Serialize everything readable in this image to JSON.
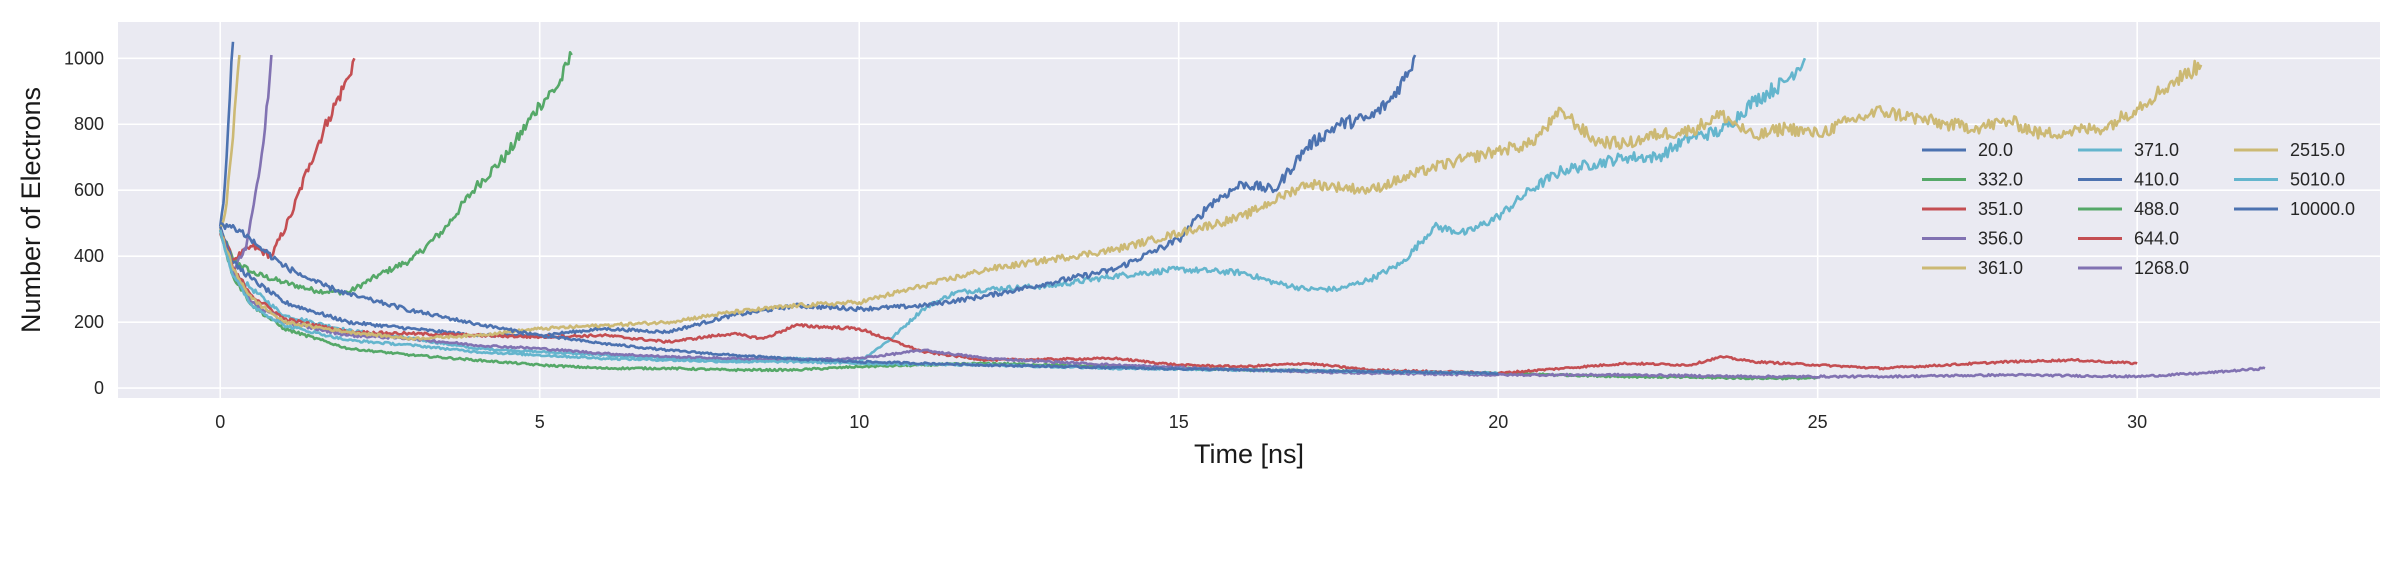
{
  "chart_data": {
    "type": "line",
    "xlabel": "Time [ns]",
    "ylabel": "Number of Electrons",
    "xlim": [
      -1.6,
      33.8
    ],
    "ylim": [
      -30,
      1110
    ],
    "xticks": [
      0,
      5,
      10,
      15,
      20,
      25,
      30
    ],
    "yticks": [
      0,
      200,
      400,
      600,
      800,
      1000
    ],
    "grid": true,
    "legend_position": "right",
    "legend_columns": 3,
    "background": "#EAEAF2",
    "series": [
      {
        "name": "20.0",
        "color": "#4C72B0",
        "x": [
          0,
          0.05,
          0.1,
          0.15,
          0.2
        ],
        "y": [
          490,
          560,
          700,
          880,
          1050
        ]
      },
      {
        "name": "332.0",
        "color": "#55A868",
        "x": [
          0,
          0.2,
          0.5,
          1,
          1.5,
          2,
          2.5,
          3,
          3.5,
          4,
          4.5,
          5,
          5.3,
          5.5
        ],
        "y": [
          480,
          390,
          350,
          320,
          295,
          290,
          345,
          390,
          480,
          610,
          710,
          860,
          920,
          1010
        ]
      },
      {
        "name": "351.0",
        "color": "#C44E52",
        "x": [
          0,
          0.2,
          0.5,
          0.8,
          1.1,
          1.4,
          1.7,
          2,
          2.1
        ],
        "y": [
          470,
          390,
          430,
          400,
          520,
          680,
          820,
          940,
          1000
        ]
      },
      {
        "name": "356.0",
        "color": "#8172B2",
        "x": [
          0,
          0.2,
          0.4,
          0.6,
          0.75,
          0.8
        ],
        "y": [
          480,
          360,
          420,
          640,
          880,
          1010
        ]
      },
      {
        "name": "361.0",
        "color": "#CCB974",
        "x": [
          0,
          0.1,
          0.2,
          0.3
        ],
        "y": [
          480,
          560,
          760,
          1010
        ]
      },
      {
        "name": "371.0",
        "color": "#64B5CD",
        "x": [
          0,
          0.2,
          0.5,
          1,
          2,
          3,
          4,
          5,
          6,
          7,
          8,
          9,
          10,
          10.5,
          11,
          11.5,
          12,
          13,
          14,
          15,
          16,
          16.5,
          17,
          17.5,
          18,
          18.5,
          19,
          19.5,
          20,
          20.5,
          21,
          21.5,
          22,
          22.5,
          23,
          23.5,
          24,
          24.5,
          24.8
        ],
        "y": [
          480,
          350,
          300,
          220,
          175,
          150,
          120,
          110,
          100,
          90,
          85,
          90,
          80,
          150,
          240,
          290,
          300,
          310,
          340,
          360,
          350,
          320,
          300,
          300,
          330,
          380,
          490,
          470,
          520,
          600,
          660,
          680,
          700,
          700,
          760,
          780,
          870,
          930,
          1000
        ]
      },
      {
        "name": "410.0",
        "color": "#4C72B0",
        "x": [
          0,
          0.2,
          0.5,
          1,
          2,
          3,
          4,
          5,
          6,
          7,
          8,
          9,
          10,
          11,
          12,
          13,
          14,
          15,
          15.5,
          16,
          16.5,
          17,
          17.5,
          18,
          18.3,
          18.6,
          18.7
        ],
        "y": [
          490,
          380,
          330,
          260,
          200,
          180,
          160,
          160,
          180,
          170,
          220,
          250,
          240,
          250,
          280,
          320,
          360,
          450,
          560,
          620,
          600,
          730,
          800,
          820,
          870,
          960,
          1010
        ]
      },
      {
        "name": "488.0",
        "color": "#55A868",
        "x": [
          0,
          0.2,
          0.5,
          1,
          2,
          3,
          4,
          5,
          6,
          7,
          8,
          9,
          10,
          12,
          14,
          16,
          18,
          20,
          22,
          24,
          25
        ],
        "y": [
          480,
          340,
          250,
          180,
          120,
          100,
          85,
          70,
          60,
          60,
          55,
          55,
          65,
          75,
          65,
          55,
          50,
          45,
          35,
          30,
          30
        ]
      },
      {
        "name": "644.0",
        "color": "#C44E52",
        "x": [
          0,
          0.2,
          0.5,
          1,
          2,
          3,
          4,
          5,
          6,
          7,
          8,
          8.5,
          9,
          10,
          11,
          12,
          14,
          15,
          16,
          17,
          18,
          19,
          20,
          21,
          22,
          23,
          23.5,
          24,
          25,
          26,
          27,
          28,
          29,
          30
        ],
        "y": [
          480,
          360,
          280,
          210,
          170,
          165,
          160,
          155,
          160,
          140,
          165,
          150,
          190,
          180,
          110,
          85,
          90,
          70,
          65,
          75,
          55,
          50,
          45,
          60,
          75,
          70,
          95,
          80,
          70,
          60,
          70,
          80,
          85,
          75
        ]
      },
      {
        "name": "1268.0",
        "color": "#8172B2",
        "x": [
          0,
          0.2,
          0.5,
          1,
          2,
          3,
          4,
          5,
          6,
          7,
          8,
          9,
          10,
          11,
          12,
          14,
          16,
          18,
          20,
          22,
          24,
          26,
          28,
          30,
          31,
          32
        ],
        "y": [
          480,
          350,
          260,
          200,
          160,
          150,
          130,
          120,
          105,
          95,
          90,
          85,
          90,
          115,
          90,
          70,
          55,
          45,
          40,
          40,
          35,
          35,
          40,
          35,
          45,
          60
        ]
      },
      {
        "name": "2515.0",
        "color": "#CCB974",
        "x": [
          0,
          0.2,
          0.5,
          1,
          2,
          3,
          4,
          5,
          6,
          7,
          8,
          9,
          10,
          11,
          12,
          13,
          14,
          15,
          16,
          17,
          18,
          19,
          20,
          20.5,
          21,
          21.5,
          22,
          22.5,
          23,
          23.5,
          24,
          24.5,
          25,
          25.5,
          26,
          26.5,
          27,
          27.5,
          28,
          28.5,
          29,
          29.5,
          30,
          30.5,
          31
        ],
        "y": [
          480,
          360,
          270,
          200,
          170,
          150,
          160,
          180,
          190,
          200,
          230,
          250,
          260,
          310,
          360,
          390,
          420,
          470,
          520,
          620,
          600,
          670,
          720,
          740,
          840,
          750,
          740,
          770,
          780,
          830,
          760,
          790,
          770,
          810,
          840,
          820,
          800,
          790,
          810,
          770,
          780,
          790,
          850,
          920,
          980
        ]
      },
      {
        "name": "5010.0",
        "color": "#64B5CD",
        "x": [
          0,
          0.2,
          0.5,
          1,
          2,
          3,
          4,
          5,
          6,
          7,
          8,
          9,
          10,
          12,
          14,
          16,
          18,
          20
        ],
        "y": [
          480,
          340,
          250,
          190,
          145,
          130,
          110,
          100,
          90,
          85,
          80,
          80,
          75,
          70,
          60,
          55,
          50,
          45
        ]
      },
      {
        "name": "10000.0",
        "color": "#4C72B0",
        "x": [
          0,
          0.3,
          0.6,
          1,
          1.5,
          2,
          2.5,
          3,
          4,
          5,
          6,
          7,
          8,
          9,
          10,
          12,
          14,
          16,
          18,
          20
        ],
        "y": [
          500,
          480,
          430,
          370,
          320,
          285,
          260,
          235,
          195,
          160,
          135,
          115,
          100,
          88,
          80,
          70,
          62,
          55,
          50,
          45
        ]
      }
    ]
  }
}
